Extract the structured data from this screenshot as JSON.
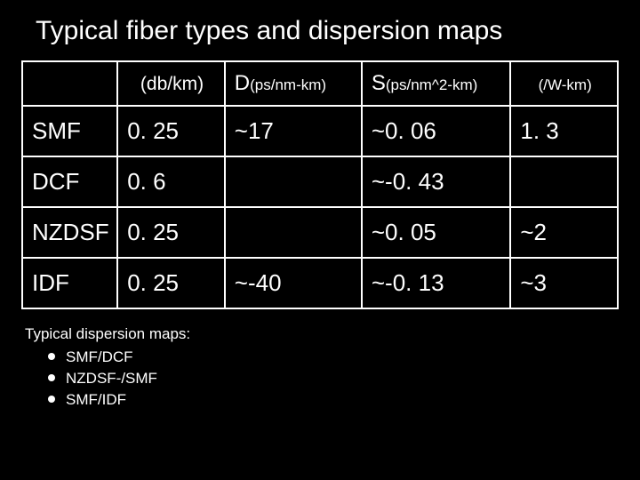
{
  "title": "Typical fiber types and dispersion maps",
  "table": {
    "columns": [
      {
        "label": "",
        "unit": ""
      },
      {
        "label": "",
        "unit": "(db/km)"
      },
      {
        "label": "D",
        "unit": "(ps/nm-km)"
      },
      {
        "label": "S",
        "unit": "(ps/nm^2-km)"
      },
      {
        "label": "",
        "unit": "(/W-km)"
      }
    ],
    "rows": [
      {
        "name": "SMF",
        "atten": "0. 25",
        "d": "~17",
        "s": "~0. 06",
        "g": "1. 3"
      },
      {
        "name": "DCF",
        "atten": "0. 6",
        "d": "",
        "s": "~-0. 43",
        "g": ""
      },
      {
        "name": "NZDSF",
        "atten": "0. 25",
        "d": "",
        "s": "~0. 05",
        "g": "~2"
      },
      {
        "name": "IDF",
        "atten": "0. 25",
        "d": "~-40",
        "s": "~-0. 13",
        "g": "~3"
      }
    ]
  },
  "subtitle": "Typical dispersion maps:",
  "maps": [
    "SMF/DCF",
    "NZDSF-/SMF",
    "SMF/IDF"
  ]
}
